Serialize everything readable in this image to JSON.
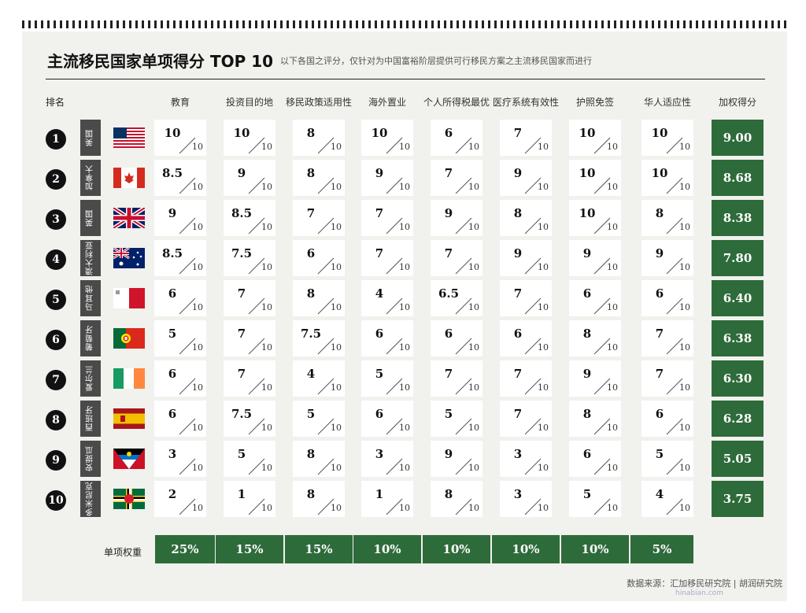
{
  "title": "主流移民国家单项得分 TOP 10",
  "subtitle": "以下各国之评分，仅针对为中国富裕阶层提供可行移民方案之主流移民国家而进行",
  "rank_header": "排名",
  "columns": [
    "教育",
    "投资目的地",
    "移民政策适用性",
    "海外置业",
    "个人所得税最优",
    "医疗系统有效性",
    "护照免签",
    "华人适应性",
    "加权得分"
  ],
  "denominator": "10",
  "rows": [
    {
      "rank": "1",
      "country": "美国",
      "flag": "usa-flag",
      "scores": [
        "10",
        "10",
        "8",
        "10",
        "6",
        "7",
        "10",
        "10"
      ],
      "total": "9.00"
    },
    {
      "rank": "2",
      "country": "加拿大",
      "flag": "canada-flag",
      "scores": [
        "8.5",
        "9",
        "8",
        "9",
        "7",
        "9",
        "10",
        "10"
      ],
      "total": "8.68"
    },
    {
      "rank": "3",
      "country": "英国",
      "flag": "uk-flag",
      "scores": [
        "9",
        "8.5",
        "7",
        "7",
        "9",
        "8",
        "10",
        "8"
      ],
      "total": "8.38"
    },
    {
      "rank": "4",
      "country": "澳大利亚",
      "flag": "australia-flag",
      "scores": [
        "8.5",
        "7.5",
        "6",
        "7",
        "7",
        "9",
        "9",
        "9"
      ],
      "total": "7.80"
    },
    {
      "rank": "5",
      "country": "马耳他",
      "flag": "malta-flag",
      "scores": [
        "6",
        "7",
        "8",
        "4",
        "6.5",
        "7",
        "6",
        "6"
      ],
      "total": "6.40"
    },
    {
      "rank": "6",
      "country": "葡萄牙",
      "flag": "portugal-flag",
      "scores": [
        "5",
        "7",
        "7.5",
        "6",
        "6",
        "6",
        "8",
        "7"
      ],
      "total": "6.38"
    },
    {
      "rank": "7",
      "country": "爱尔兰",
      "flag": "ireland-flag",
      "scores": [
        "6",
        "7",
        "4",
        "5",
        "7",
        "7",
        "9",
        "7"
      ],
      "total": "6.30"
    },
    {
      "rank": "8",
      "country": "西班牙",
      "flag": "spain-flag",
      "scores": [
        "6",
        "7.5",
        "5",
        "6",
        "5",
        "7",
        "8",
        "6"
      ],
      "total": "6.28"
    },
    {
      "rank": "9",
      "country": "安提瓜",
      "flag": "antigua-flag",
      "scores": [
        "3",
        "5",
        "8",
        "3",
        "9",
        "3",
        "6",
        "5"
      ],
      "total": "5.05"
    },
    {
      "rank": "10",
      "country": "多米尼克",
      "flag": "dominica-flag",
      "scores": [
        "2",
        "1",
        "8",
        "1",
        "8",
        "3",
        "5",
        "4"
      ],
      "total": "3.75"
    }
  ],
  "weight_label": "单项权重",
  "weights": [
    "25%",
    "15%",
    "15%",
    "10%",
    "10%",
    "10%",
    "10%",
    "5%"
  ],
  "source": "数据来源：汇加移民研究院 | 胡润研究院",
  "watermark": "hinabian.com",
  "colors": {
    "green": "#2e6b3a",
    "dark": "#4a4a4a"
  }
}
